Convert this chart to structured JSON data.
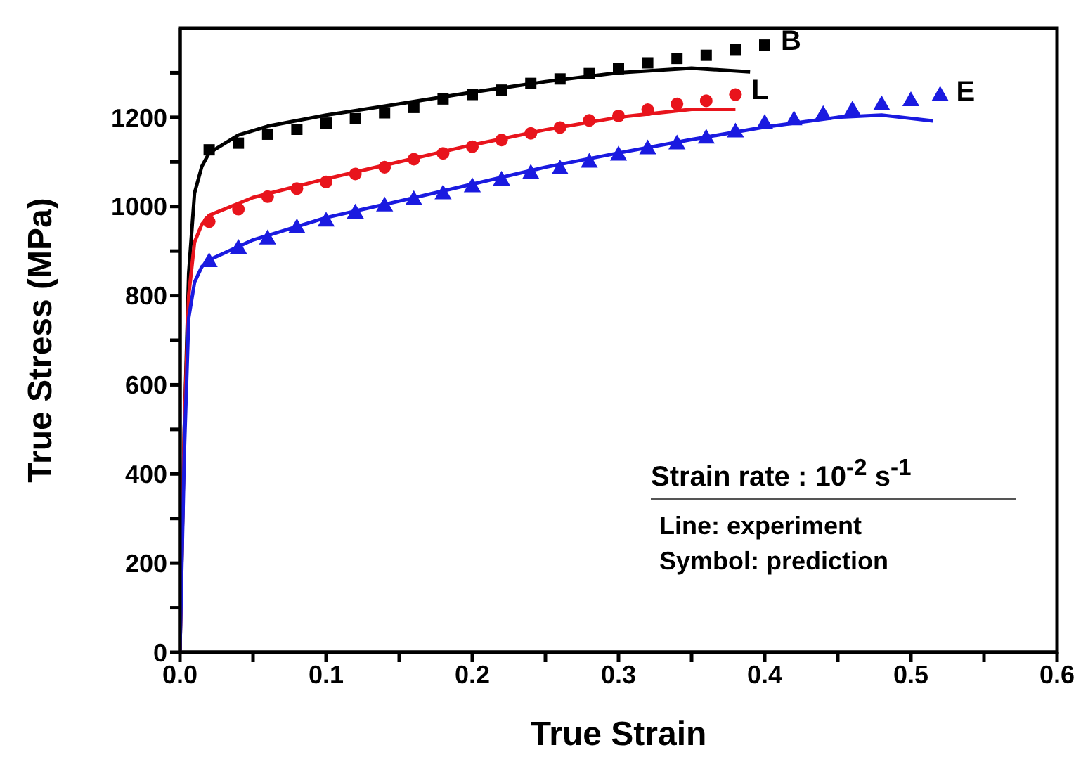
{
  "chart_data": {
    "type": "line",
    "xlabel": "True Strain",
    "ylabel": "True Stress (MPa)",
    "xlim": [
      0,
      0.6
    ],
    "ylim": [
      0,
      1400
    ],
    "xticks": [
      {
        "value": 0,
        "label": "0.0"
      },
      {
        "value": 0.05,
        "label": null
      },
      0.1,
      {
        "value": 0.15,
        "label": null
      },
      0.2,
      {
        "value": 0.25,
        "label": null
      },
      0.3,
      {
        "value": 0.35,
        "label": null
      },
      0.4,
      {
        "value": 0.45,
        "label": null
      },
      0.5,
      {
        "value": 0.55,
        "label": null
      },
      0.6
    ],
    "yticks": [
      0,
      {
        "value": 100,
        "label": null
      },
      200,
      {
        "value": 300,
        "label": null
      },
      400,
      {
        "value": 500,
        "label": null
      },
      600,
      {
        "value": 700,
        "label": null
      },
      800,
      {
        "value": 900,
        "label": null
      },
      1000,
      {
        "value": 1100,
        "label": null
      },
      1200,
      {
        "value": 1300,
        "label": null
      }
    ],
    "grid": false,
    "legend": false,
    "series": [
      {
        "color": "#000000",
        "marker": "none",
        "line_style": "solid",
        "x": [
          0,
          0.003,
          0.006,
          0.01,
          0.015,
          0.02,
          0.04,
          0.06,
          0.1,
          0.15,
          0.2,
          0.25,
          0.3,
          0.35,
          0.39
        ],
        "values": [
          0,
          500,
          850,
          1030,
          1090,
          1120,
          1160,
          1180,
          1205,
          1230,
          1256,
          1280,
          1300,
          1310,
          1302
        ]
      },
      {
        "color": "#e8141c",
        "marker": "none",
        "line_style": "solid",
        "x": [
          0,
          0.003,
          0.006,
          0.01,
          0.015,
          0.02,
          0.05,
          0.1,
          0.15,
          0.2,
          0.25,
          0.3,
          0.35,
          0.38
        ],
        "values": [
          0,
          500,
          800,
          920,
          960,
          980,
          1020,
          1062,
          1100,
          1138,
          1172,
          1200,
          1218,
          1218
        ]
      },
      {
        "color": "#1a1ae0",
        "marker": "none",
        "line_style": "solid",
        "x": [
          0,
          0.003,
          0.006,
          0.01,
          0.015,
          0.02,
          0.05,
          0.1,
          0.15,
          0.2,
          0.25,
          0.3,
          0.35,
          0.4,
          0.45,
          0.48,
          0.515
        ],
        "values": [
          0,
          450,
          750,
          830,
          865,
          880,
          925,
          975,
          1012,
          1050,
          1088,
          1120,
          1150,
          1178,
          1200,
          1205,
          1192
        ]
      },
      {
        "type": "scatter",
        "name": "B",
        "color": "#000000",
        "marker": "square",
        "x": [
          0.02,
          0.04,
          0.06,
          0.08,
          0.1,
          0.12,
          0.14,
          0.16,
          0.18,
          0.2,
          0.22,
          0.24,
          0.26,
          0.28,
          0.3,
          0.32,
          0.34,
          0.36,
          0.38,
          0.4
        ],
        "values": [
          1127,
          1142,
          1162,
          1173,
          1187,
          1197,
          1210,
          1222,
          1241,
          1251,
          1261,
          1276,
          1286,
          1298,
          1309,
          1322,
          1332,
          1339,
          1352,
          1362
        ]
      },
      {
        "type": "scatter",
        "name": "L",
        "color": "#e8141c",
        "marker": "circle",
        "x": [
          0.02,
          0.04,
          0.06,
          0.08,
          0.1,
          0.12,
          0.14,
          0.16,
          0.18,
          0.2,
          0.22,
          0.24,
          0.26,
          0.28,
          0.3,
          0.32,
          0.34,
          0.36,
          0.38
        ],
        "values": [
          966,
          994,
          1022,
          1040,
          1055,
          1073,
          1088,
          1106,
          1119,
          1134,
          1149,
          1164,
          1177,
          1193,
          1203,
          1217,
          1230,
          1237,
          1251
        ]
      },
      {
        "type": "scatter",
        "name": "E",
        "color": "#1a1ae0",
        "marker": "triangle",
        "x": [
          0.02,
          0.04,
          0.06,
          0.08,
          0.1,
          0.12,
          0.14,
          0.16,
          0.18,
          0.2,
          0.22,
          0.24,
          0.26,
          0.28,
          0.3,
          0.32,
          0.34,
          0.36,
          0.38,
          0.4,
          0.42,
          0.44,
          0.46,
          0.48,
          0.5,
          0.52
        ],
        "values": [
          875,
          905,
          926,
          951,
          966,
          984,
          1000,
          1014,
          1027,
          1043,
          1058,
          1073,
          1083,
          1098,
          1114,
          1128,
          1139,
          1152,
          1166,
          1185,
          1193,
          1205,
          1215,
          1227,
          1236,
          1248
        ]
      }
    ],
    "annotations": [
      "Strain rate : 10$^{-2}$ s$^{-1}$",
      "Line: experiment",
      "Symbol: prediction"
    ]
  }
}
